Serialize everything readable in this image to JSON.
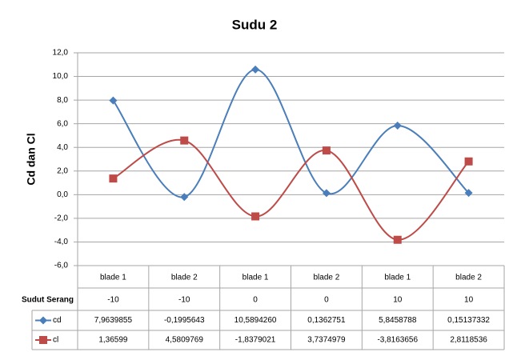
{
  "chart_data": {
    "type": "line",
    "title": "Sudu 2",
    "y_label": "Cd dan Cl",
    "categories": [
      "blade 1",
      "blade 2",
      "blade 1",
      "blade 2",
      "blade 1",
      "blade 2"
    ],
    "category_groups_title": "Sudut Serang",
    "category_groups": [
      -10,
      -10,
      0,
      0,
      10,
      10
    ],
    "series": [
      {
        "name": "cd",
        "color": "#4a7ebb",
        "marker": "diamond",
        "values": [
          7.9639855,
          -0.1995643,
          10.589426,
          0.1362751,
          5.8458788,
          0.15137332
        ],
        "value_labels": [
          "7,9639855",
          "-0,1995643",
          "10,5894260",
          "0,1362751",
          "5,8458788",
          "0,15137332"
        ]
      },
      {
        "name": "cl",
        "color": "#be4b48",
        "marker": "square",
        "values": [
          1.36599,
          4.5809769,
          -1.8379021,
          3.7374979,
          -3.8163656,
          2.8118536
        ],
        "value_labels": [
          "1,36599",
          "4,5809769",
          "-1,8379021",
          "3,7374979",
          "-3,8163656",
          "2,8118536"
        ]
      }
    ],
    "ylim": [
      -6,
      12
    ],
    "yticks": [
      {
        "value": -6,
        "label": "-6,0"
      },
      {
        "value": -4,
        "label": "-4,0"
      },
      {
        "value": -2,
        "label": "-2,0"
      },
      {
        "value": 0,
        "label": "0,0"
      },
      {
        "value": 2,
        "label": "2,0"
      },
      {
        "value": 4,
        "label": "4,0"
      },
      {
        "value": 6,
        "label": "6,0"
      },
      {
        "value": 8,
        "label": "8,0"
      },
      {
        "value": 10,
        "label": "10,0"
      },
      {
        "value": 12,
        "label": "12,0"
      }
    ],
    "grid": true,
    "smooth": true
  }
}
